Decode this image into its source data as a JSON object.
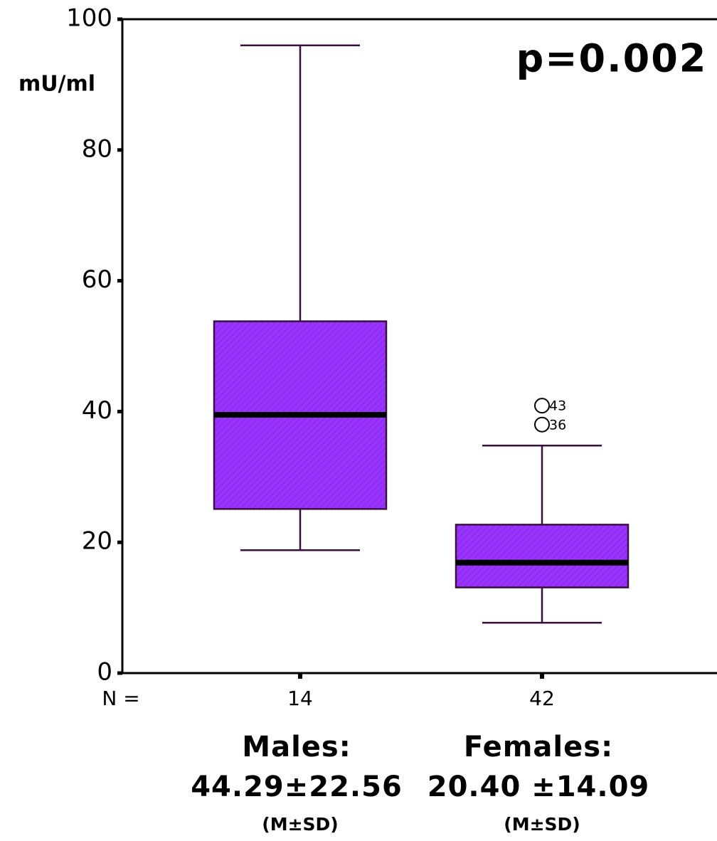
{
  "chart_data": {
    "type": "box",
    "y_label": "mU/ml",
    "annotation": "p=0.002",
    "n_label": "N =",
    "ylim": [
      0,
      100
    ],
    "yticks": [
      0,
      20,
      40,
      60,
      80,
      100
    ],
    "grid": false,
    "color": "#9933ff",
    "line_color": "#3c0d40",
    "boxes": [
      {
        "n": 14,
        "whisker_low": 18.8,
        "q1": 25.1,
        "median": 39.5,
        "q3": 53.8,
        "whisker_high": 96.0,
        "outliers": [],
        "caption": [
          "Males:",
          "44.29±22.56",
          "(M±SD)"
        ]
      },
      {
        "n": 42,
        "whisker_low": 7.7,
        "q1": 13.1,
        "median": 16.9,
        "q3": 22.7,
        "whisker_high": 34.8,
        "outliers": [
          {
            "value": 40.9,
            "label": "43"
          },
          {
            "value": 38.0,
            "label": "36"
          }
        ],
        "caption": [
          "Females:",
          "20.40 ±14.09",
          "(M±SD)"
        ]
      }
    ]
  }
}
